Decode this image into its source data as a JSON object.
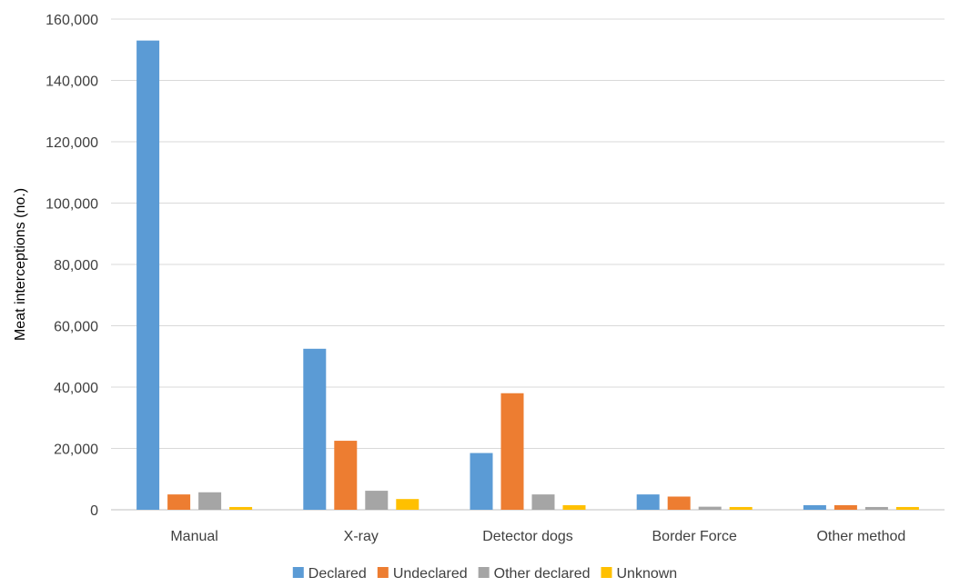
{
  "chart_data": {
    "type": "bar",
    "title": "",
    "xlabel": "",
    "ylabel": "Meat interceptions (no.)",
    "ylim": [
      0,
      160000
    ],
    "yticks": [
      0,
      20000,
      40000,
      60000,
      80000,
      100000,
      120000,
      140000,
      160000
    ],
    "ytick_labels": [
      "0",
      "20,000",
      "40,000",
      "60,000",
      "80,000",
      "100,000",
      "120,000",
      "140,000",
      "160,000"
    ],
    "grid": true,
    "legend_position": "bottom",
    "categories": [
      "Manual",
      "X-ray",
      "Detector dogs",
      "Border Force",
      "Other method"
    ],
    "series": [
      {
        "name": "Declared",
        "color": "#5B9BD5",
        "values": [
          153000,
          52500,
          18500,
          5000,
          1500
        ]
      },
      {
        "name": "Undeclared",
        "color": "#ED7D31",
        "values": [
          5000,
          22500,
          38000,
          4300,
          1500
        ]
      },
      {
        "name": "Other declared",
        "color": "#A5A5A5",
        "values": [
          5700,
          6200,
          5000,
          1000,
          900
        ]
      },
      {
        "name": "Unknown",
        "color": "#FFC000",
        "values": [
          900,
          3500,
          1500,
          900,
          900
        ]
      }
    ]
  }
}
